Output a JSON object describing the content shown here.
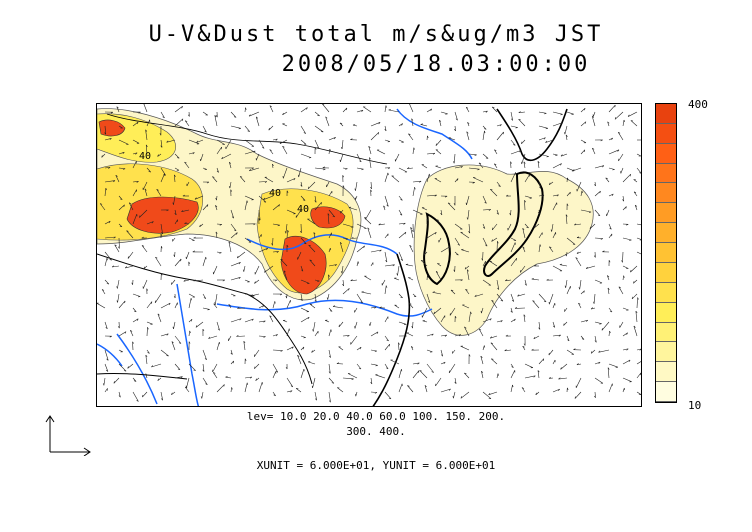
{
  "title": {
    "line1": "U-V&Dust total m/s&ug/m3 JST",
    "line2": "2008/05/18.03:00:00"
  },
  "contour_levels": {
    "line1": "lev= 10.0 20.0 40.0 60.0 100. 150. 200.",
    "line2": "300. 400."
  },
  "units_text": "XUNIT = 6.000E+01, YUNIT = 6.000E+01",
  "colorbar": {
    "max_label": "400",
    "min_label": "10",
    "colors": [
      "#fffde0",
      "#fff9c4",
      "#fff59d",
      "#fff176",
      "#ffee58",
      "#ffe14d",
      "#ffd23d",
      "#ffc233",
      "#ffb02b",
      "#ff9c24",
      "#ff881f",
      "#ff741a",
      "#ff6015",
      "#f44f12",
      "#e8420f"
    ]
  },
  "map": {
    "contour_labels": [
      "40",
      "40",
      "40"
    ],
    "coast_color": "#000000",
    "river_color": "#1a66ff",
    "low_fill": "#fdf6c8",
    "high_fill": "#f04a1a"
  }
}
